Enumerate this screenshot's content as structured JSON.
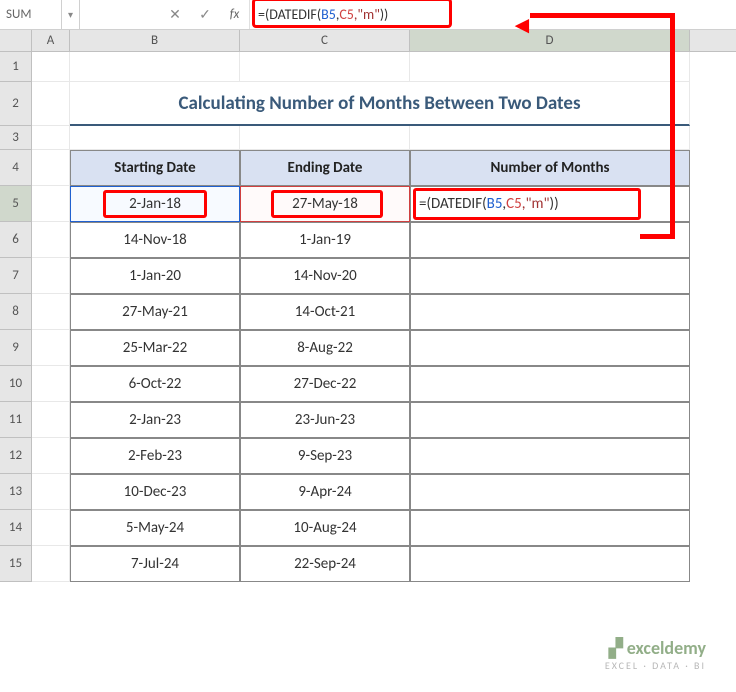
{
  "nameBox": "SUM",
  "formulaBar": {
    "parts": [
      {
        "t": "=(",
        "c": "f-black"
      },
      {
        "t": "DATEDIF",
        "c": "f-black"
      },
      {
        "t": "(",
        "c": "f-black"
      },
      {
        "t": "B5",
        "c": "f-blue"
      },
      {
        "t": ",",
        "c": "f-black"
      },
      {
        "t": "C5",
        "c": "f-red"
      },
      {
        "t": ",\"m\"",
        "c": "f-maroon"
      },
      {
        "t": "))",
        "c": "f-black"
      }
    ]
  },
  "columns": [
    "A",
    "B",
    "C",
    "D"
  ],
  "title": "Calculating Number of Months Between Two Dates",
  "headers": {
    "b": "Starting Date",
    "c": "Ending Date",
    "d": "Number of Months"
  },
  "cellFormula": {
    "parts": [
      {
        "t": "=(",
        "c": "f-black"
      },
      {
        "t": "DATEDIF",
        "c": "f-black"
      },
      {
        "t": "(",
        "c": "f-black"
      },
      {
        "t": "B5",
        "c": "f-blue"
      },
      {
        "t": ",",
        "c": "f-black"
      },
      {
        "t": "C5",
        "c": "f-red"
      },
      {
        "t": ",\"m\"",
        "c": "f-maroon"
      },
      {
        "t": "))",
        "c": "f-black"
      }
    ]
  },
  "rows": [
    {
      "n": 5,
      "b": "2-Jan-18",
      "c": "27-May-18"
    },
    {
      "n": 6,
      "b": "14-Nov-18",
      "c": "1-Jan-19"
    },
    {
      "n": 7,
      "b": "1-Jan-20",
      "c": "14-Nov-20"
    },
    {
      "n": 8,
      "b": "27-May-21",
      "c": "14-Oct-21"
    },
    {
      "n": 9,
      "b": "25-Mar-22",
      "c": "8-Aug-22"
    },
    {
      "n": 10,
      "b": "6-Oct-22",
      "c": "27-Dec-22"
    },
    {
      "n": 11,
      "b": "2-Jan-23",
      "c": "23-Jun-23"
    },
    {
      "n": 12,
      "b": "2-Feb-23",
      "c": "9-Sep-23"
    },
    {
      "n": 13,
      "b": "10-Dec-23",
      "c": "9-Apr-24"
    },
    {
      "n": 14,
      "b": "5-May-24",
      "c": "10-Aug-24"
    },
    {
      "n": 15,
      "b": "7-Jul-24",
      "c": "22-Sep-24"
    }
  ],
  "watermark": {
    "logo": "exceldemy",
    "tag": "EXCEL · DATA · BI"
  }
}
